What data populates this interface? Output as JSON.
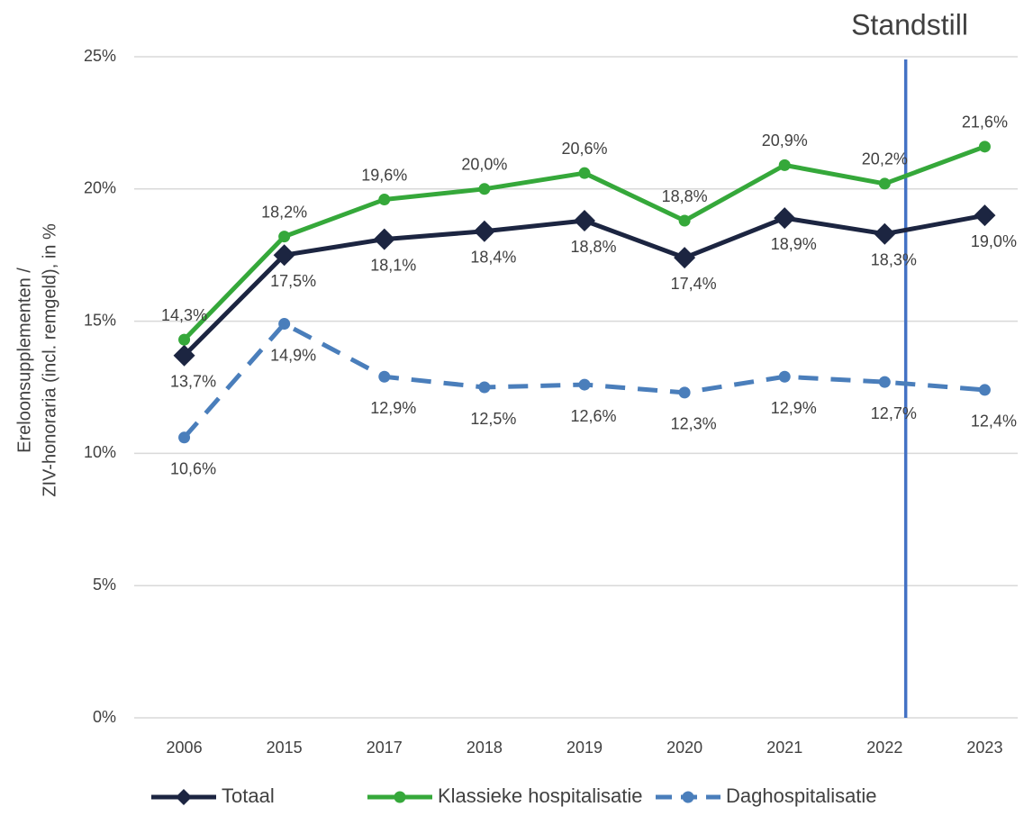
{
  "chart_data": {
    "type": "line",
    "ylabel": [
      "Ereloonsupplementen /",
      "ZIV-honoraria (incl. remgeld), in %"
    ],
    "annotations": [
      {
        "text": "Standstill",
        "color": "#4472c4"
      }
    ],
    "categories": [
      "2006",
      "2015",
      "2017",
      "2018",
      "2019",
      "2020",
      "2021",
      "2022",
      "2023"
    ],
    "ylim": [
      0,
      25
    ],
    "yticks": [
      {
        "value": 0,
        "label": "0%"
      },
      {
        "value": 5,
        "label": "5%"
      },
      {
        "value": 10,
        "label": "10%"
      },
      {
        "value": 15,
        "label": "15%"
      },
      {
        "value": 20,
        "label": "20%"
      },
      {
        "value": 25,
        "label": "25%"
      }
    ],
    "grid": true,
    "legend": "bottom",
    "series": [
      {
        "name": "Totaal",
        "color": "#1c2541",
        "marker": "diamond",
        "dashed": false,
        "label_color": "#404040",
        "values": [
          13.7,
          17.5,
          18.1,
          18.4,
          18.8,
          17.4,
          18.9,
          18.3,
          19.0
        ],
        "value_labels": [
          "13,7%",
          "17,5%",
          "18,1%",
          "18,4%",
          "18,8%",
          "17,4%",
          "18,9%",
          "18,3%",
          "19,0%"
        ]
      },
      {
        "name": "Klassieke hospitalisatie",
        "color": "#35a83a",
        "marker": "circle",
        "dashed": false,
        "label_color": "#1f78c1",
        "values": [
          14.3,
          18.2,
          19.6,
          20.0,
          20.6,
          18.8,
          20.9,
          20.2,
          21.6
        ],
        "value_labels": [
          "14,3%",
          "18,2%",
          "19,6%",
          "20,0%",
          "20,6%",
          "18,8%",
          "20,9%",
          "20,2%",
          "21,6%"
        ]
      },
      {
        "name": "Daghospitalisatie",
        "color": "#4a7ebb",
        "marker": "circle",
        "dashed": true,
        "label_color": "#404040",
        "values": [
          10.6,
          14.9,
          12.9,
          12.5,
          12.6,
          12.3,
          12.9,
          12.7,
          12.4
        ],
        "value_labels": [
          "10,6%",
          "14,9%",
          "12,9%",
          "12,5%",
          "12,6%",
          "12,3%",
          "12,9%",
          "12,7%",
          "12,4%"
        ]
      }
    ]
  }
}
